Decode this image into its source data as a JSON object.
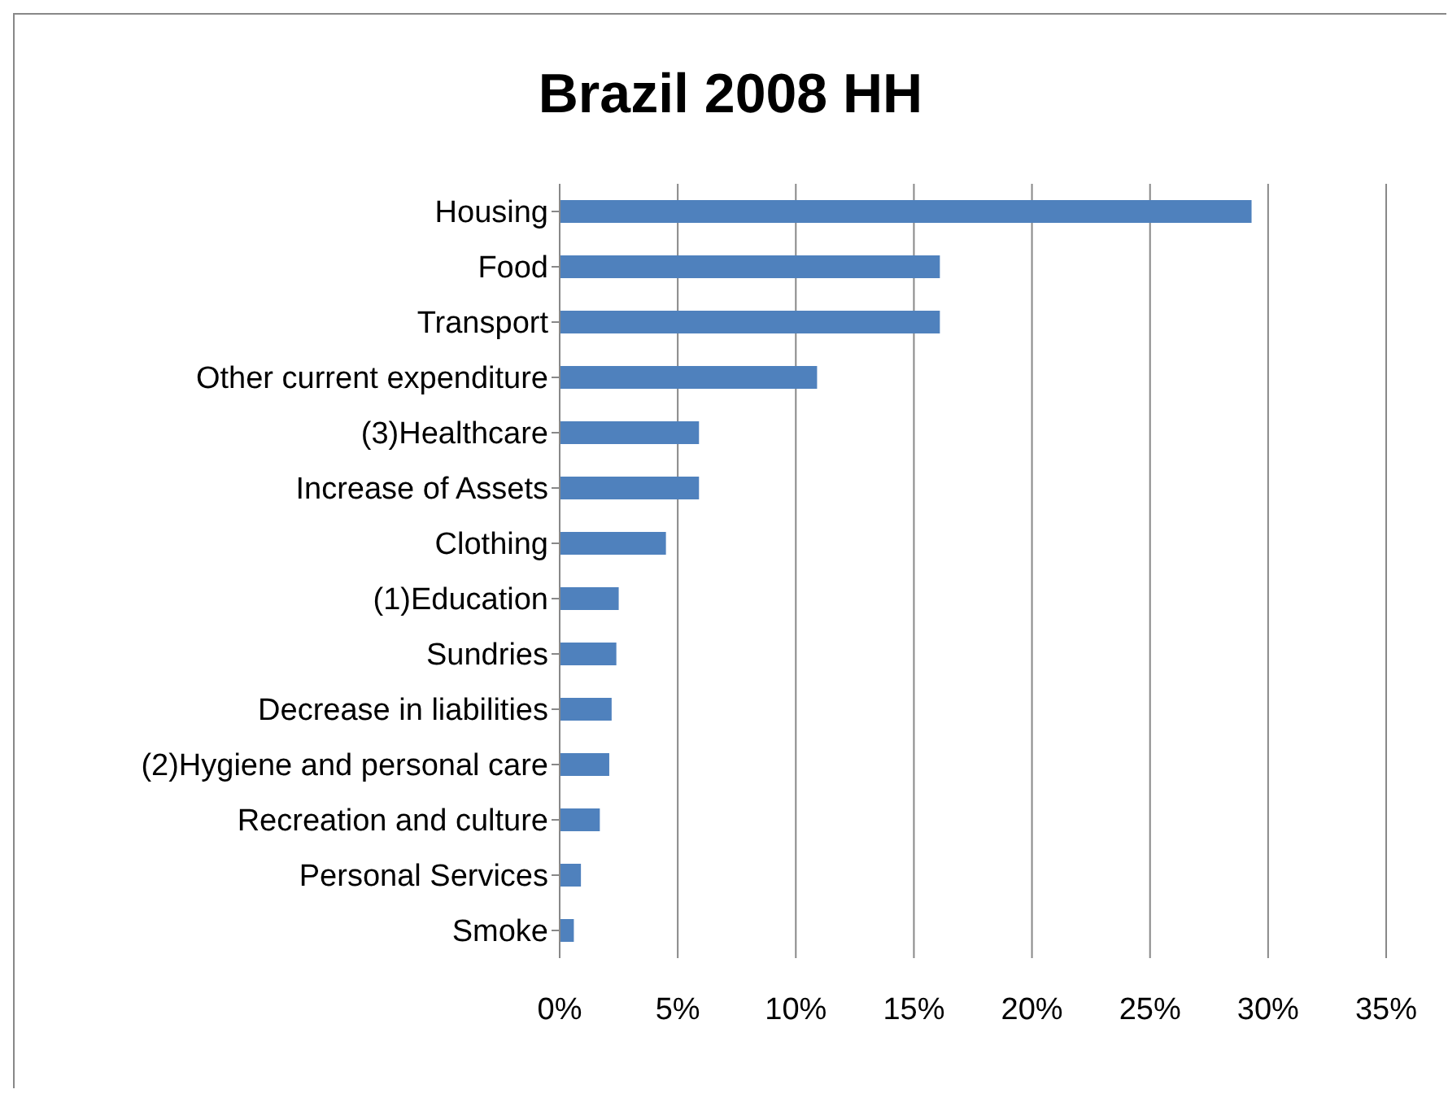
{
  "chart_data": {
    "type": "bar",
    "orientation": "horizontal",
    "title": "Brazil 2008 HH",
    "categories": [
      "Housing",
      "Food",
      "Transport",
      "Other current expenditure",
      "(3)Healthcare",
      "Increase of Assets",
      "Clothing",
      "(1)Education",
      "Sundries",
      "Decrease in liabilities",
      "(2)Hygiene and personal care",
      "Recreation and culture",
      "Personal Services",
      "Smoke"
    ],
    "values": [
      29.3,
      16.1,
      16.1,
      10.9,
      5.9,
      5.9,
      4.5,
      2.5,
      2.4,
      2.2,
      2.1,
      1.7,
      0.9,
      0.6
    ],
    "color": "#4f81bd",
    "xlim": [
      0,
      35
    ],
    "xticks": [
      {
        "value": 0,
        "label": "0%"
      },
      {
        "value": 5,
        "label": "5%"
      },
      {
        "value": 10,
        "label": "10%"
      },
      {
        "value": 15,
        "label": "15%"
      },
      {
        "value": 20,
        "label": "20%"
      },
      {
        "value": 25,
        "label": "25%"
      },
      {
        "value": 30,
        "label": "30%"
      },
      {
        "value": 35,
        "label": "35%"
      }
    ],
    "grid": "x",
    "legend": false
  }
}
